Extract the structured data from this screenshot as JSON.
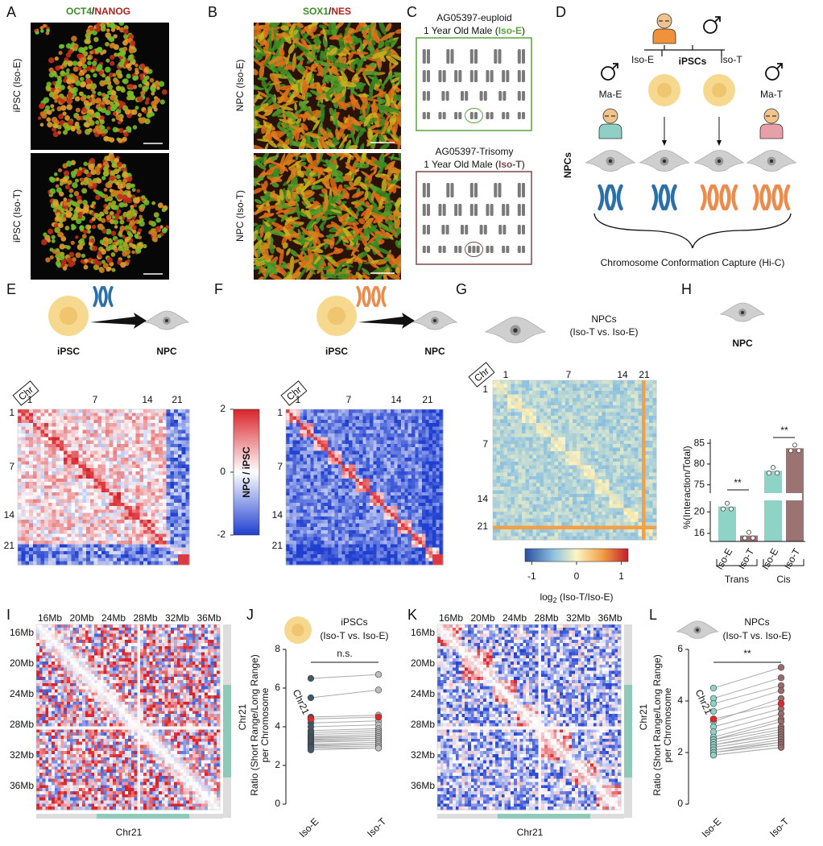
{
  "panel_a": {
    "label": "A",
    "stain": [
      "OCT4",
      "/",
      "NANOG"
    ],
    "rows": [
      "iPSC (Iso-E)",
      "iPSC (Iso-T)"
    ]
  },
  "panel_b": {
    "label": "B",
    "stain": [
      "SOX1",
      "/",
      "NES"
    ],
    "rows": [
      "NPC (Iso-E)",
      "NPC (Iso-T)"
    ]
  },
  "panel_c": {
    "label": "C",
    "karyotypes": [
      {
        "name": "AG05397-euploid",
        "description": [
          "1 Year Old Male (",
          "Iso-E",
          ")"
        ]
      },
      {
        "name": "AG05397-Trisomy",
        "description": [
          "1 Year Old Male (",
          "Iso-T",
          ")"
        ]
      }
    ]
  },
  "panel_d": {
    "label": "D",
    "parent": "iPSCs",
    "isogenic": [
      "Iso-E",
      "Iso-T"
    ],
    "mosaic": [
      "Ma-E",
      "Ma-T"
    ],
    "row_label": "NPCs",
    "caption": "Chromosome Conformation Capture (Hi-C)"
  },
  "panel_e": {
    "label": "E",
    "from": "iPSC",
    "to": "NPC",
    "axis_box": "Chr",
    "chromosome_ticks": [
      "1",
      "7",
      "14",
      "21"
    ]
  },
  "panel_f": {
    "label": "F",
    "from": "iPSC",
    "to": "NPC",
    "axis_box": "Chr",
    "chromosome_ticks": [
      "1",
      "7",
      "14",
      "21"
    ]
  },
  "colorbar_ef": {
    "label": "NPC / iPSC",
    "lim": [
      -2,
      2
    ],
    "ticks": [
      2,
      0,
      -2
    ]
  },
  "panel_g": {
    "label": "G",
    "title": "NPCs",
    "subtitle": "(Iso-T vs. Iso-E)",
    "axis_box": "Chr",
    "chromosome_ticks": [
      "1",
      "7",
      "14",
      "21"
    ],
    "colorbar": {
      "label": [
        "log",
        "2",
        " (Iso-T/Iso-E)"
      ],
      "lim": [
        -1.15,
        1.15
      ],
      "ticks": [
        -1,
        0,
        1
      ]
    }
  },
  "panel_h": {
    "label": "H"
  },
  "panel_i": {
    "label": "I",
    "ticks": [
      "16Mb",
      "20Mb",
      "24Mb",
      "28Mb",
      "32Mb",
      "36Mb"
    ],
    "axis_label": "Chr21"
  },
  "panel_j": {
    "label": "J"
  },
  "panel_k": {
    "label": "K",
    "ticks": [
      "16Mb",
      "20Mb",
      "24Mb",
      "28Mb",
      "32Mb",
      "36Mb"
    ],
    "axis_label": "Chr21"
  },
  "panel_l": {
    "label": "L"
  },
  "chart_data": [
    {
      "type": "bar",
      "title": "NPC",
      "ylabel": "%(Interaction/Total)",
      "categories": [
        "Iso-E",
        "Iso-T",
        "Iso-E",
        "Iso-T"
      ],
      "groups": [
        "Trans",
        "Cis"
      ],
      "values": [
        21,
        15.6,
        78.4,
        83.8
      ],
      "colors": [
        "#8fd3c6",
        "#9c7373",
        "#8fd3c6",
        "#9c7373"
      ],
      "segments": [
        {
          "ylim": [
            14.5,
            22
          ],
          "yticks": [
            16,
            20
          ]
        },
        {
          "ylim": [
            73,
            86
          ],
          "yticks": [
            75,
            80,
            85
          ]
        }
      ],
      "value_segment": [
        0,
        0,
        1,
        1
      ],
      "annotations": [
        "**",
        "**"
      ]
    },
    {
      "type": "slope",
      "title": "iPSCs",
      "subtitle": "(Iso-T vs. Iso-E)",
      "ylabel": [
        "Ratio (Short Range/Long Range)",
        "per Chromosome"
      ],
      "categories": [
        "Iso-E",
        "Iso-T"
      ],
      "ylim": [
        0,
        8
      ],
      "yticks": [
        0,
        2,
        4,
        6,
        8
      ],
      "series": [
        {
          "name": "Chr21",
          "color": "#e3262a",
          "values": [
            4.4,
            4.5
          ]
        }
      ],
      "others": {
        "colors": [
          "#3e5a6e",
          "#bdbdbd"
        ],
        "start": [
          6.5,
          5.5,
          4.5,
          4.2,
          4.0,
          3.8,
          3.7,
          3.6,
          3.5,
          3.45,
          3.4,
          3.35,
          3.3,
          3.25,
          3.2,
          3.1,
          3.05,
          3.0,
          2.95,
          2.9,
          2.8
        ],
        "end": [
          6.7,
          5.9,
          4.6,
          4.3,
          4.1,
          3.9,
          3.8,
          3.7,
          3.6,
          3.5,
          3.5,
          3.4,
          3.4,
          3.3,
          3.3,
          3.2,
          3.1,
          3.1,
          3.0,
          2.9,
          2.9
        ]
      },
      "annotation": "n.s."
    },
    {
      "type": "slope",
      "title": "NPCs",
      "subtitle": "(Iso-T vs. Iso-E)",
      "ylabel": [
        "Ratio (Short Range/Long Range)",
        "per Chromosome"
      ],
      "categories": [
        "Iso-E",
        "Iso-T"
      ],
      "ylim": [
        0,
        6
      ],
      "yticks": [
        0,
        2,
        4,
        6
      ],
      "series": [
        {
          "name": "Chr21",
          "color": "#e3262a",
          "values": [
            3.3,
            3.9
          ]
        }
      ],
      "others": {
        "colors": [
          "#8fd3c6",
          "#9c6a6a"
        ],
        "start": [
          4.5,
          4.1,
          3.9,
          3.6,
          3.2,
          3.0,
          2.8,
          2.6,
          2.5,
          2.5,
          2.4,
          2.3,
          2.3,
          2.2,
          2.2,
          2.1,
          2.1,
          2.0,
          2.0,
          1.9,
          1.9
        ],
        "end": [
          5.3,
          4.9,
          4.6,
          4.4,
          4.1,
          3.7,
          3.5,
          3.3,
          3.2,
          3.0,
          2.9,
          2.8,
          2.7,
          2.6,
          2.6,
          2.5,
          2.4,
          2.4,
          2.3,
          2.2,
          2.2
        ]
      },
      "annotation": "**"
    }
  ]
}
